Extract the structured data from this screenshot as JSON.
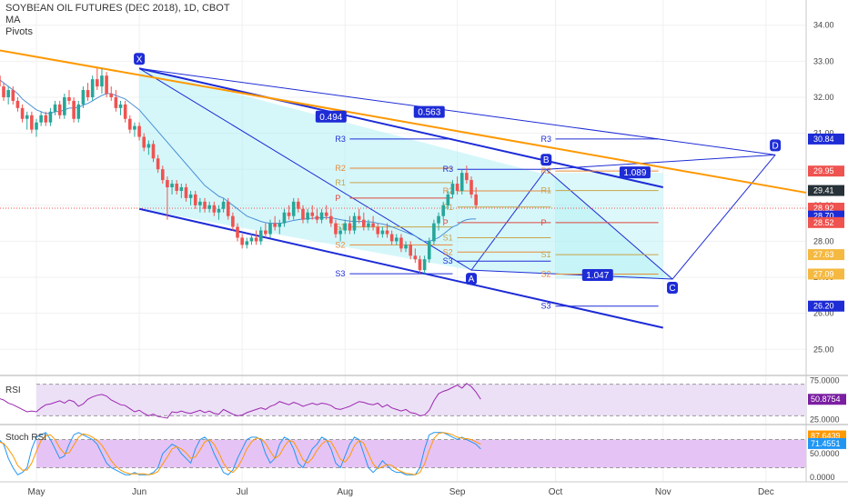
{
  "header": {
    "title": "SOYBEAN OIL FUTURES (DEC 2018), 1D, CBOT",
    "indicator_ma": "MA",
    "indicator_pivots": "Pivots"
  },
  "colors": {
    "up_candle": "#26a69a",
    "down_candle": "#ef5350",
    "ma_line": "#4a8fd6",
    "pattern_line": "#1e2cd6",
    "pattern_fill": "#b3f0f5",
    "trend_line": "#ff9800",
    "pivot_resistance": "#1e2cd6",
    "pivot_r2": "#e88a3a",
    "pivot_r1": "#c9a44a",
    "pivot_pp": "#e0443a",
    "pivot_s1": "#c9a44a",
    "pivot_s2": "#e88a3a",
    "pivot_s3": "#1e2cd6",
    "rsi_line": "#9c27b0",
    "rsi_band": "#ece0f6",
    "stoch_k": "#2196f3",
    "stoch_d": "#ff9800",
    "stoch_band": "#e6c3f5"
  },
  "chart_data": {
    "type": "candlestick",
    "title": "SOYBEAN OIL FUTURES (DEC 2018), 1D, CBOT",
    "x_ticks": [
      "May",
      "Jun",
      "Jul",
      "Aug",
      "Sep",
      "Oct",
      "Nov",
      "Dec"
    ],
    "x_tick_day_index": [
      0,
      22,
      44,
      66,
      90,
      111,
      134,
      156
    ],
    "y_ticks": [
      25.0,
      26.0,
      27.0,
      28.0,
      29.0,
      30.0,
      31.0,
      32.0,
      33.0,
      34.0
    ],
    "y_tick_labels": [
      "25.00",
      "26.00",
      "27.00",
      "28.00",
      "29.00",
      "30.00",
      "31.00",
      "32.00",
      "33.00",
      "34.00"
    ],
    "ylim": [
      24.3,
      34.7
    ],
    "candles_ohlc": [
      [
        32.6,
        32.7,
        32.2,
        32.3
      ],
      [
        32.3,
        32.4,
        31.9,
        32.0
      ],
      [
        32.0,
        32.3,
        31.8,
        32.2
      ],
      [
        32.2,
        32.3,
        31.8,
        31.9
      ],
      [
        31.9,
        32.0,
        31.6,
        31.7
      ],
      [
        31.7,
        31.8,
        31.3,
        31.4
      ],
      [
        31.4,
        31.6,
        31.1,
        31.5
      ],
      [
        31.5,
        31.6,
        31.0,
        31.1
      ],
      [
        31.1,
        31.4,
        30.9,
        31.3
      ],
      [
        31.3,
        31.6,
        31.2,
        31.5
      ],
      [
        31.5,
        31.6,
        31.2,
        31.3
      ],
      [
        31.3,
        31.7,
        31.2,
        31.6
      ],
      [
        31.6,
        31.9,
        31.5,
        31.8
      ],
      [
        31.8,
        31.9,
        31.4,
        31.5
      ],
      [
        31.5,
        32.1,
        31.4,
        32.0
      ],
      [
        32.0,
        32.2,
        31.8,
        31.9
      ],
      [
        31.9,
        32.0,
        31.3,
        31.4
      ],
      [
        31.4,
        31.9,
        31.3,
        31.8
      ],
      [
        31.8,
        32.3,
        31.7,
        32.2
      ],
      [
        32.2,
        32.4,
        31.9,
        32.0
      ],
      [
        32.0,
        32.6,
        31.9,
        32.5
      ],
      [
        32.5,
        32.8,
        32.2,
        32.3
      ],
      [
        32.3,
        32.8,
        32.1,
        32.6
      ],
      [
        32.6,
        32.7,
        32.0,
        32.1
      ],
      [
        32.1,
        32.3,
        31.9,
        32.0
      ],
      [
        32.0,
        32.2,
        31.6,
        31.7
      ],
      [
        31.7,
        31.9,
        31.5,
        31.8
      ],
      [
        31.8,
        31.9,
        31.3,
        31.4
      ],
      [
        31.4,
        31.5,
        31.0,
        31.1
      ],
      [
        31.1,
        31.3,
        30.9,
        31.2
      ],
      [
        31.2,
        31.3,
        30.8,
        30.9
      ],
      [
        30.9,
        31.0,
        30.5,
        30.6
      ],
      [
        30.6,
        30.8,
        30.4,
        30.7
      ],
      [
        30.7,
        30.8,
        30.2,
        30.3
      ],
      [
        30.3,
        30.4,
        29.9,
        30.0
      ],
      [
        30.0,
        30.1,
        29.6,
        29.7
      ],
      [
        29.7,
        29.8,
        28.6,
        29.5
      ],
      [
        29.5,
        29.7,
        29.3,
        29.6
      ],
      [
        29.6,
        29.7,
        29.3,
        29.4
      ],
      [
        29.4,
        29.6,
        29.2,
        29.5
      ],
      [
        29.5,
        29.6,
        29.1,
        29.2
      ],
      [
        29.2,
        29.4,
        29.0,
        29.3
      ],
      [
        29.3,
        29.4,
        28.9,
        29.0
      ],
      [
        29.0,
        29.2,
        28.8,
        29.1
      ],
      [
        29.1,
        29.2,
        28.8,
        28.9
      ],
      [
        28.9,
        29.1,
        28.8,
        29.0
      ],
      [
        29.0,
        29.1,
        28.7,
        28.8
      ],
      [
        28.8,
        29.0,
        28.6,
        28.9
      ],
      [
        28.9,
        29.2,
        28.8,
        29.1
      ],
      [
        29.1,
        29.2,
        28.6,
        28.7
      ],
      [
        28.7,
        28.8,
        28.3,
        28.4
      ],
      [
        28.4,
        28.5,
        28.0,
        28.1
      ],
      [
        28.1,
        28.2,
        27.8,
        27.9
      ],
      [
        27.9,
        28.1,
        27.8,
        28.0
      ],
      [
        28.0,
        28.2,
        27.9,
        28.1
      ],
      [
        28.1,
        28.3,
        27.9,
        28.0
      ],
      [
        28.0,
        28.4,
        27.9,
        28.3
      ],
      [
        28.3,
        28.5,
        28.1,
        28.2
      ],
      [
        28.2,
        28.6,
        28.1,
        28.5
      ],
      [
        28.5,
        28.7,
        28.3,
        28.4
      ],
      [
        28.4,
        28.6,
        28.2,
        28.5
      ],
      [
        28.5,
        28.9,
        28.4,
        28.8
      ],
      [
        28.8,
        29.0,
        28.6,
        28.7
      ],
      [
        28.7,
        29.2,
        28.6,
        29.1
      ],
      [
        29.1,
        29.2,
        28.8,
        28.9
      ],
      [
        28.9,
        29.0,
        28.5,
        28.6
      ],
      [
        28.6,
        28.9,
        28.5,
        28.8
      ],
      [
        28.8,
        29.0,
        28.6,
        28.7
      ],
      [
        28.7,
        28.9,
        28.5,
        28.6
      ],
      [
        28.6,
        28.9,
        28.5,
        28.8
      ],
      [
        28.8,
        29.0,
        28.6,
        28.7
      ],
      [
        28.7,
        28.9,
        28.4,
        28.5
      ],
      [
        28.5,
        28.6,
        28.1,
        28.2
      ],
      [
        28.2,
        28.4,
        28.0,
        28.3
      ],
      [
        28.3,
        28.6,
        28.2,
        28.5
      ],
      [
        28.5,
        28.7,
        28.2,
        28.3
      ],
      [
        28.3,
        28.8,
        28.2,
        28.7
      ],
      [
        28.7,
        28.9,
        28.5,
        28.6
      ],
      [
        28.6,
        28.8,
        28.3,
        28.4
      ],
      [
        28.4,
        28.6,
        28.3,
        28.5
      ],
      [
        28.5,
        28.7,
        28.3,
        28.4
      ],
      [
        28.4,
        28.5,
        28.1,
        28.2
      ],
      [
        28.2,
        28.4,
        28.1,
        28.3
      ],
      [
        28.3,
        28.5,
        28.1,
        28.2
      ],
      [
        28.2,
        28.3,
        27.9,
        28.0
      ],
      [
        28.0,
        28.2,
        27.9,
        28.1
      ],
      [
        28.1,
        28.2,
        27.7,
        27.8
      ],
      [
        27.8,
        28.0,
        27.7,
        27.9
      ],
      [
        27.9,
        28.0,
        27.5,
        27.6
      ],
      [
        27.6,
        27.8,
        27.4,
        27.5
      ],
      [
        27.5,
        27.6,
        27.1,
        27.2
      ],
      [
        27.2,
        27.6,
        27.1,
        27.5
      ],
      [
        27.5,
        28.1,
        27.4,
        28.0
      ],
      [
        28.0,
        28.6,
        27.9,
        28.5
      ],
      [
        28.5,
        28.8,
        28.3,
        28.7
      ],
      [
        28.7,
        29.1,
        28.6,
        29.0
      ],
      [
        29.0,
        29.4,
        28.9,
        29.3
      ],
      [
        29.3,
        29.7,
        29.2,
        29.6
      ],
      [
        29.6,
        29.8,
        29.3,
        29.4
      ],
      [
        29.4,
        30.0,
        29.3,
        29.9
      ],
      [
        29.9,
        30.1,
        29.6,
        29.7
      ],
      [
        29.7,
        29.8,
        29.2,
        29.3
      ],
      [
        29.3,
        29.5,
        28.9,
        29.0
      ]
    ],
    "moving_average": {
      "name": "MA",
      "values": [
        32.5,
        32.4,
        32.3,
        32.2,
        32.1,
        31.95,
        31.85,
        31.75,
        31.65,
        31.6,
        31.55,
        31.55,
        31.6,
        31.6,
        31.65,
        31.7,
        31.7,
        31.72,
        31.78,
        31.83,
        31.9,
        31.98,
        32.05,
        32.1,
        32.1,
        32.05,
        32.0,
        31.95,
        31.85,
        31.75,
        31.65,
        31.5,
        31.35,
        31.2,
        31.05,
        30.9,
        30.75,
        30.6,
        30.45,
        30.3,
        30.15,
        30.0,
        29.85,
        29.7,
        29.55,
        29.45,
        29.35,
        29.25,
        29.2,
        29.1,
        29.0,
        28.9,
        28.8,
        28.7,
        28.65,
        28.6,
        28.55,
        28.52,
        28.5,
        28.5,
        28.5,
        28.52,
        28.55,
        28.58,
        28.6,
        28.62,
        28.63,
        28.64,
        28.65,
        28.65,
        28.66,
        28.65,
        28.63,
        28.6,
        28.58,
        28.56,
        28.55,
        28.55,
        28.55,
        28.54,
        28.53,
        28.5,
        28.48,
        28.45,
        28.4,
        28.35,
        28.3,
        28.25,
        28.2,
        28.15,
        28.05,
        28.0,
        28.0,
        28.05,
        28.1,
        28.2,
        28.3,
        28.4,
        28.45,
        28.55,
        28.6,
        28.62,
        28.62
      ]
    },
    "harmonic_pattern": {
      "points": [
        {
          "label": "X",
          "day": 22,
          "price": 32.8
        },
        {
          "label": "A",
          "day": 93,
          "price": 27.2
        },
        {
          "label": "B",
          "day": 109,
          "price": 30.0
        },
        {
          "label": "C",
          "day": 136,
          "price": 26.95
        },
        {
          "label": "D",
          "day": 158,
          "price": 30.4
        }
      ],
      "ratios": [
        {
          "value": "0.494",
          "day": 63,
          "price": 31.45
        },
        {
          "value": "0.563",
          "day": 84,
          "price": 31.58
        },
        {
          "value": "1.089",
          "day": 128,
          "price": 29.9
        },
        {
          "value": "1.047",
          "day": 120,
          "price": 27.05
        }
      ]
    },
    "price_badges": [
      {
        "value": "30.84",
        "price": 30.84,
        "color": "#1e2cd6"
      },
      {
        "value": "29.95",
        "price": 29.95,
        "color": "#ef5350"
      },
      {
        "value": "29.41",
        "price": 29.41,
        "color": "#263238"
      },
      {
        "value": "28.92",
        "price": 28.92,
        "color": "#ef5350"
      },
      {
        "value": "28.70",
        "price": 28.7,
        "color": "#1e2cd6"
      },
      {
        "value": "28.52",
        "price": 28.52,
        "color": "#ef5350"
      },
      {
        "value": "27.63",
        "price": 27.63,
        "color": "#f5b941"
      },
      {
        "value": "27.09",
        "price": 27.09,
        "color": "#f5b941"
      },
      {
        "value": "26.20",
        "price": 26.2,
        "color": "#1e2cd6"
      }
    ],
    "pivots": [
      {
        "period_start": 67,
        "period_end": 89,
        "levels": [
          {
            "label": "R3",
            "price": 30.84
          },
          {
            "label": "R2",
            "price": 30.03
          },
          {
            "label": "R1",
            "price": 29.63
          },
          {
            "label": "P",
            "price": 29.2
          },
          {
            "label": "S1",
            "price": 28.4
          },
          {
            "label": "S2",
            "price": 27.9
          },
          {
            "label": "S3",
            "price": 27.1
          }
        ]
      },
      {
        "period_start": 90,
        "period_end": 110,
        "levels": [
          {
            "label": "R3",
            "price": 30.0
          },
          {
            "label": "R2",
            "price": 29.4
          },
          {
            "label": "R1",
            "price": 28.95
          },
          {
            "label": "P",
            "price": 28.52
          },
          {
            "label": "S1",
            "price": 28.1
          },
          {
            "label": "S2",
            "price": 27.7
          },
          {
            "label": "S3",
            "price": 27.45
          }
        ]
      },
      {
        "period_start": 111,
        "period_end": 133,
        "levels": [
          {
            "label": "R3",
            "price": 30.84
          },
          {
            "label": "R2",
            "price": 29.95
          },
          {
            "label": "R1",
            "price": 29.41
          },
          {
            "label": "P",
            "price": 28.52
          },
          {
            "label": "S1",
            "price": 27.63
          },
          {
            "label": "S2",
            "price": 27.09
          },
          {
            "label": "S3",
            "price": 26.2
          }
        ]
      }
    ],
    "rsi": {
      "name": "RSI",
      "y_ticks": [
        25.0,
        75.0
      ],
      "y_tick_labels": [
        "25.0000",
        "75.0000"
      ],
      "ylim": [
        20,
        80
      ],
      "band": [
        30,
        70
      ],
      "current": "50.8754",
      "values": [
        52,
        50,
        46,
        44,
        41,
        38,
        35,
        36,
        35,
        40,
        44,
        45,
        47,
        49,
        46,
        50,
        48,
        42,
        45,
        51,
        54,
        56,
        57,
        55,
        50,
        47,
        44,
        43,
        39,
        35,
        37,
        33,
        30,
        32,
        29,
        28,
        27,
        35,
        34,
        36,
        34,
        33,
        35,
        37,
        34,
        36,
        33,
        32,
        38,
        35,
        32,
        30,
        31,
        34,
        36,
        38,
        40,
        38,
        42,
        44,
        48,
        46,
        44,
        47,
        45,
        42,
        44,
        46,
        44,
        46,
        45,
        43,
        39,
        38,
        40,
        42,
        45,
        48,
        47,
        45,
        44,
        46,
        41,
        44,
        40,
        38,
        36,
        38,
        34,
        33,
        30,
        31,
        37,
        49,
        58,
        61,
        63,
        66,
        69,
        65,
        71,
        67,
        60,
        51
      ]
    },
    "stoch_rsi": {
      "name": "Stoch RSI",
      "y_ticks": [
        0.0,
        50.0
      ],
      "y_tick_labels": [
        "0.0000",
        "50.0000"
      ],
      "ylim": [
        -10,
        110
      ],
      "band": [
        20,
        80
      ],
      "current_k": "87.6439",
      "current_d": "71.4551",
      "k": [
        80,
        70,
        40,
        20,
        5,
        10,
        20,
        60,
        85,
        90,
        95,
        80,
        60,
        40,
        45,
        70,
        90,
        95,
        90,
        85,
        80,
        70,
        50,
        30,
        20,
        15,
        10,
        5,
        5,
        10,
        5,
        5,
        5,
        10,
        20,
        50,
        60,
        70,
        65,
        50,
        40,
        30,
        60,
        80,
        85,
        75,
        50,
        30,
        10,
        5,
        15,
        40,
        60,
        80,
        85,
        85,
        80,
        50,
        30,
        40,
        70,
        85,
        80,
        60,
        30,
        20,
        40,
        60,
        70,
        85,
        80,
        60,
        30,
        20,
        45,
        70,
        85,
        80,
        50,
        20,
        10,
        20,
        35,
        25,
        15,
        10,
        10,
        5,
        5,
        5,
        20,
        60,
        90,
        95,
        95,
        95,
        90,
        85,
        80,
        85,
        80,
        75,
        70,
        60
      ],
      "d": [
        75,
        72,
        60,
        45,
        25,
        15,
        15,
        30,
        55,
        78,
        88,
        90,
        80,
        62,
        50,
        52,
        68,
        85,
        92,
        90,
        85,
        78,
        68,
        52,
        35,
        23,
        15,
        10,
        7,
        7,
        7,
        7,
        5,
        7,
        12,
        28,
        43,
        60,
        65,
        60,
        52,
        40,
        43,
        58,
        75,
        80,
        70,
        52,
        30,
        15,
        10,
        20,
        38,
        60,
        75,
        83,
        82,
        72,
        55,
        40,
        47,
        65,
        78,
        75,
        58,
        37,
        30,
        40,
        57,
        70,
        78,
        75,
        58,
        38,
        32,
        45,
        67,
        78,
        72,
        50,
        28,
        18,
        22,
        27,
        25,
        17,
        12,
        8,
        7,
        5,
        10,
        28,
        57,
        82,
        93,
        95,
        93,
        90,
        85,
        83,
        82,
        80,
        75,
        70
      ]
    }
  }
}
